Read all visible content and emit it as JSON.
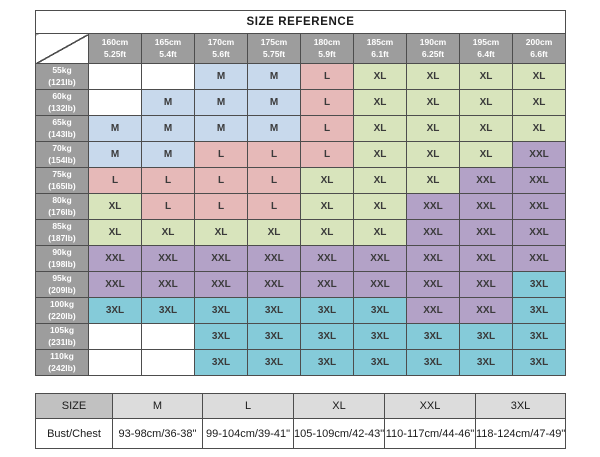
{
  "title": "SIZE REFERENCE",
  "colors": {
    "header_gray": "#9d9d9d",
    "border": "#4d4d4d",
    "empty_fill": "#ffffff",
    "size_fill": {
      "M": "#c8d9ec",
      "L": "#e6b9b8",
      "XL": "#d8e4bc",
      "XXL": "#b3a2c7",
      "3XL": "#85cbd9"
    }
  },
  "main_table": {
    "height_headers": [
      {
        "cm": "160cm",
        "ft": "5.25ft"
      },
      {
        "cm": "165cm",
        "ft": "5.4ft"
      },
      {
        "cm": "170cm",
        "ft": "5.6ft"
      },
      {
        "cm": "175cm",
        "ft": "5.75ft"
      },
      {
        "cm": "180cm",
        "ft": "5.9ft"
      },
      {
        "cm": "185cm",
        "ft": "6.1ft"
      },
      {
        "cm": "190cm",
        "ft": "6.25ft"
      },
      {
        "cm": "195cm",
        "ft": "6.4ft"
      },
      {
        "cm": "200cm",
        "ft": "6.6ft"
      }
    ],
    "rows": [
      {
        "kg": "55kg",
        "lb": "(121lb)",
        "sizes": [
          "",
          "",
          "M",
          "M",
          "L",
          "XL",
          "XL",
          "XL",
          "XL"
        ]
      },
      {
        "kg": "60kg",
        "lb": "(132lb)",
        "sizes": [
          "",
          "M",
          "M",
          "M",
          "L",
          "XL",
          "XL",
          "XL",
          "XL"
        ]
      },
      {
        "kg": "65kg",
        "lb": "(143lb)",
        "sizes": [
          "M",
          "M",
          "M",
          "M",
          "L",
          "XL",
          "XL",
          "XL",
          "XL"
        ]
      },
      {
        "kg": "70kg",
        "lb": "(154lb)",
        "sizes": [
          "M",
          "M",
          "L",
          "L",
          "L",
          "XL",
          "XL",
          "XL",
          "XXL"
        ]
      },
      {
        "kg": "75kg",
        "lb": "(165lb)",
        "sizes": [
          "L",
          "L",
          "L",
          "L",
          "XL",
          "XL",
          "XL",
          "XXL",
          "XXL"
        ]
      },
      {
        "kg": "80kg",
        "lb": "(176lb)",
        "sizes": [
          "XL",
          "L",
          "L",
          "L",
          "XL",
          "XL",
          "XXL",
          "XXL",
          "XXL"
        ]
      },
      {
        "kg": "85kg",
        "lb": "(187lb)",
        "sizes": [
          "XL",
          "XL",
          "XL",
          "XL",
          "XL",
          "XL",
          "XXL",
          "XXL",
          "XXL"
        ]
      },
      {
        "kg": "90kg",
        "lb": "(198lb)",
        "sizes": [
          "XXL",
          "XXL",
          "XXL",
          "XXL",
          "XXL",
          "XXL",
          "XXL",
          "XXL",
          "XXL"
        ]
      },
      {
        "kg": "95kg",
        "lb": "(209lb)",
        "sizes": [
          "XXL",
          "XXL",
          "XXL",
          "XXL",
          "XXL",
          "XXL",
          "XXL",
          "XXL",
          "3XL"
        ]
      },
      {
        "kg": "100kg",
        "lb": "(220lb)",
        "sizes": [
          "3XL",
          "3XL",
          "3XL",
          "3XL",
          "3XL",
          "3XL",
          "XXL",
          "XXL",
          "3XL"
        ]
      },
      {
        "kg": "105kg",
        "lb": "(231lb)",
        "sizes": [
          "",
          "",
          "3XL",
          "3XL",
          "3XL",
          "3XL",
          "3XL",
          "3XL",
          "3XL"
        ]
      },
      {
        "kg": "110kg",
        "lb": "(242lb)",
        "sizes": [
          "",
          "",
          "3XL",
          "3XL",
          "3XL",
          "3XL",
          "3XL",
          "3XL",
          "3XL"
        ]
      }
    ]
  },
  "bottom_table": {
    "header": [
      "SIZE",
      "M",
      "L",
      "XL",
      "XXL",
      "3XL"
    ],
    "row_label": "Bust/Chest",
    "values": [
      "93-98cm/36-38\"",
      "99-104cm/39-41\"",
      "105-109cm/42-43\"",
      "110-117cm/44-46\"",
      "118-124cm/47-49\""
    ]
  }
}
